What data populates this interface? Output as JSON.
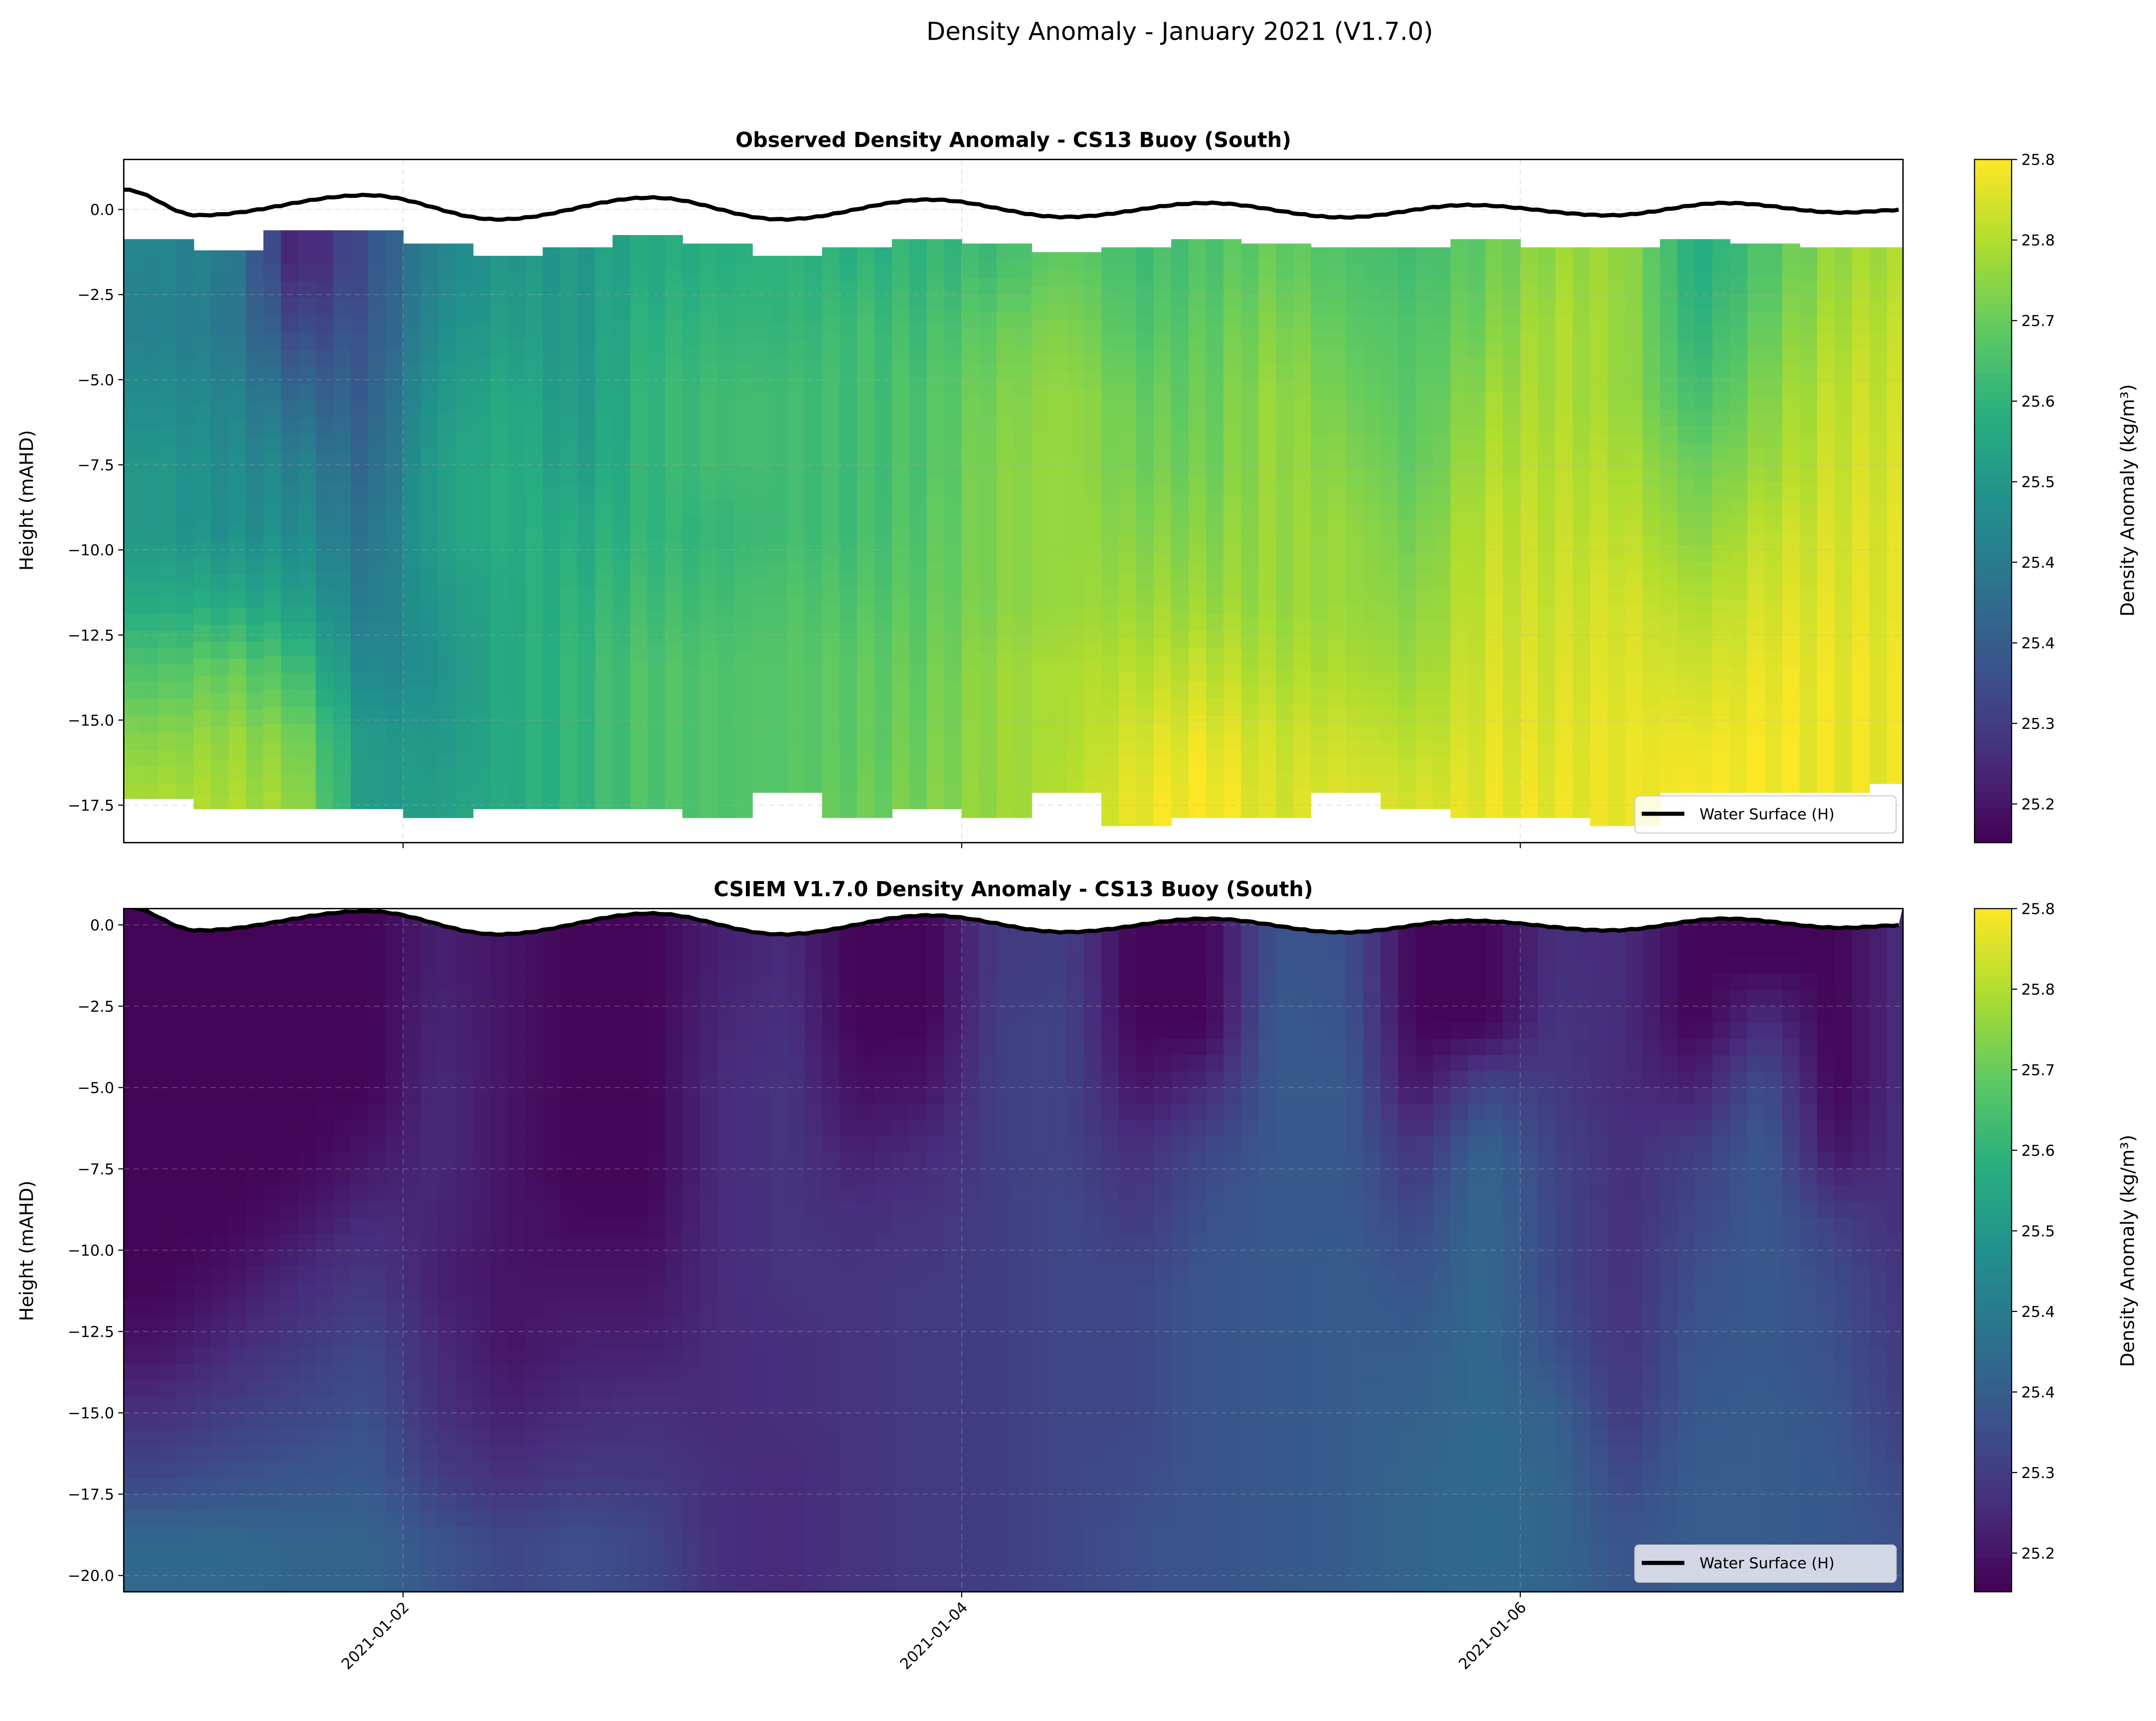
{
  "suptitle": "Density Anomaly - January 2021 (V1.7.0)",
  "colors": {
    "water_surface": "#000000",
    "grid": "#b0b0b0",
    "colormap": [
      "#440154",
      "#472d7b",
      "#3b528b",
      "#2c728e",
      "#21918c",
      "#28ae80",
      "#5ec962",
      "#addc30",
      "#fde725"
    ]
  },
  "xaxis": {
    "xlim": [
      "2021-01-01 00:00",
      "2021-01-07 08:53"
    ],
    "ticks": [
      "2021-01-02 00:00",
      "2021-01-04 00:00",
      "2021-01-06 00:00"
    ],
    "tick_labels": [
      "2021-01-02",
      "2021-01-04",
      "2021-01-06"
    ]
  },
  "water_surface": {
    "name": "Water Surface (H)",
    "points": [
      [
        "2021-01-01 00:00",
        0.58
      ],
      [
        "2021-01-01 06:20",
        -0.17
      ],
      [
        "2021-01-01 20:57",
        0.42
      ],
      [
        "2021-01-02 08:10",
        -0.29
      ],
      [
        "2021-01-02 21:20",
        0.35
      ],
      [
        "2021-01-03 08:32",
        -0.29
      ],
      [
        "2021-01-03 21:13",
        0.29
      ],
      [
        "2021-01-04 08:55",
        -0.22
      ],
      [
        "2021-01-04 21:06",
        0.19
      ],
      [
        "2021-01-05 08:48",
        -0.23
      ],
      [
        "2021-01-05 19:30",
        0.13
      ],
      [
        "2021-01-06 07:42",
        -0.17
      ],
      [
        "2021-01-06 17:38",
        0.19
      ],
      [
        "2021-01-07 03:42",
        -0.09
      ],
      [
        "2021-01-07 08:53",
        -0.01
      ]
    ]
  },
  "colorbar": {
    "label": "Density Anomaly (kg/m³)",
    "vmin": 25.164,
    "vmax": 25.8,
    "ticks": [
      25.2,
      25.275,
      25.35,
      25.425,
      25.5,
      25.575,
      25.65,
      25.725,
      25.8
    ],
    "tick_labels": [
      "25.2",
      "25.3",
      "25.4",
      "25.4",
      "25.5",
      "25.6",
      "25.7",
      "25.8",
      "25.8"
    ]
  },
  "chart_data": [
    {
      "type": "heatmap",
      "title": "Observed Density Anomaly - CS13 Buoy (South)",
      "xlabel": "",
      "ylabel": "Height (mAHD)",
      "ylim": [
        -18.6,
        1.47
      ],
      "yticks": [
        0,
        -2.5,
        -5,
        -7.5,
        -10,
        -12.5,
        -15,
        -17.5
      ],
      "ytick_labels": [
        "0.0",
        "−2.5",
        "−5.0",
        "−7.5",
        "−10.0",
        "−12.5",
        "−15.0",
        "−17.5"
      ],
      "grid": true,
      "legend": "lower right",
      "x": [
        "2021-01-01 03:00",
        "2021-01-01 09:00",
        "2021-01-01 15:00",
        "2021-01-01 21:00",
        "2021-01-02 03:00",
        "2021-01-02 09:00",
        "2021-01-02 15:00",
        "2021-01-02 21:00",
        "2021-01-03 03:00",
        "2021-01-03 09:00",
        "2021-01-03 15:00",
        "2021-01-03 21:00",
        "2021-01-04 03:00",
        "2021-01-04 09:00",
        "2021-01-04 15:00",
        "2021-01-04 21:00",
        "2021-01-05 03:00",
        "2021-01-05 09:00",
        "2021-01-05 15:00",
        "2021-01-05 21:00",
        "2021-01-06 03:00",
        "2021-01-06 09:00",
        "2021-01-06 15:00",
        "2021-01-06 21:00",
        "2021-01-07 03:00",
        "2021-01-07 09:00"
      ],
      "y": [
        -1.5,
        -3.5,
        -5.5,
        -7.5,
        -9.5,
        -11.5,
        -13.5,
        -15.5,
        -17.5
      ],
      "data_top": [
        -0.87,
        -1.2,
        -0.61,
        -0.61,
        -1.0,
        -1.36,
        -1.11,
        -0.75,
        -1.0,
        -1.36,
        -1.11,
        -0.87,
        -1.0,
        -1.25,
        -1.11,
        -0.87,
        -1.0,
        -1.11,
        -1.11,
        -0.87,
        -1.11,
        -1.11,
        -0.87,
        -1.0,
        -1.11,
        -1.11
      ],
      "data_bottom": [
        -17.3,
        -17.6,
        -17.6,
        -17.6,
        -17.86,
        -17.6,
        -17.6,
        -17.6,
        -17.86,
        -17.12,
        -17.86,
        -17.6,
        -17.86,
        -17.12,
        -18.1,
        -17.86,
        -17.86,
        -17.12,
        -17.6,
        -17.86,
        -17.86,
        -18.1,
        -17.12,
        -17.12,
        -17.12,
        -16.86
      ],
      "values": [
        [
          25.45,
          25.44,
          25.47,
          25.5,
          25.5,
          25.55,
          25.62,
          25.68,
          25.72
        ],
        [
          25.43,
          25.42,
          25.45,
          25.47,
          25.48,
          25.55,
          25.65,
          25.7,
          25.72
        ],
        [
          25.22,
          25.3,
          25.38,
          25.44,
          25.47,
          25.52,
          25.6,
          25.67,
          25.7
        ],
        [
          25.32,
          25.33,
          25.35,
          25.37,
          25.4,
          25.42,
          25.45,
          25.5,
          25.5
        ],
        [
          25.45,
          25.47,
          25.5,
          25.52,
          25.52,
          25.5,
          25.48,
          25.5,
          25.52
        ],
        [
          25.5,
          25.52,
          25.55,
          25.56,
          25.56,
          25.55,
          25.55,
          25.55,
          25.55
        ],
        [
          25.5,
          25.5,
          25.5,
          25.52,
          25.55,
          25.57,
          25.58,
          25.58,
          25.58
        ],
        [
          25.55,
          25.57,
          25.58,
          25.58,
          25.58,
          25.6,
          25.62,
          25.62,
          25.62
        ],
        [
          25.56,
          25.58,
          25.6,
          25.6,
          25.58,
          25.6,
          25.62,
          25.62,
          25.62
        ],
        [
          25.57,
          25.58,
          25.6,
          25.6,
          25.6,
          25.62,
          25.63,
          25.63,
          25.63
        ],
        [
          25.57,
          25.6,
          25.6,
          25.6,
          25.6,
          25.62,
          25.64,
          25.64,
          25.65
        ],
        [
          25.58,
          25.6,
          25.62,
          25.62,
          25.63,
          25.64,
          25.65,
          25.66,
          25.67
        ],
        [
          25.6,
          25.65,
          25.67,
          25.68,
          25.68,
          25.68,
          25.7,
          25.7,
          25.7
        ],
        [
          25.65,
          25.68,
          25.7,
          25.7,
          25.7,
          25.7,
          25.72,
          25.72,
          25.73
        ],
        [
          25.6,
          25.62,
          25.65,
          25.66,
          25.68,
          25.7,
          25.73,
          25.76,
          25.78
        ],
        [
          25.62,
          25.64,
          25.65,
          25.66,
          25.68,
          25.7,
          25.74,
          25.78,
          25.8
        ],
        [
          25.65,
          25.68,
          25.7,
          25.7,
          25.7,
          25.7,
          25.72,
          25.75,
          25.76
        ],
        [
          25.62,
          25.64,
          25.66,
          25.68,
          25.7,
          25.7,
          25.72,
          25.75,
          25.77
        ],
        [
          25.6,
          25.62,
          25.63,
          25.64,
          25.66,
          25.68,
          25.7,
          25.73,
          25.76
        ],
        [
          25.65,
          25.67,
          25.7,
          25.72,
          25.74,
          25.75,
          25.76,
          25.77,
          25.78
        ],
        [
          25.7,
          25.72,
          25.72,
          25.73,
          25.74,
          25.75,
          25.76,
          25.77,
          25.78
        ],
        [
          25.7,
          25.7,
          25.7,
          25.72,
          25.74,
          25.76,
          25.77,
          25.78,
          25.78
        ],
        [
          25.55,
          25.57,
          25.6,
          25.65,
          25.68,
          25.72,
          25.75,
          25.78,
          25.8
        ],
        [
          25.62,
          25.65,
          25.68,
          25.7,
          25.74,
          25.76,
          25.78,
          25.79,
          25.79
        ],
        [
          25.7,
          25.72,
          25.74,
          25.75,
          25.76,
          25.77,
          25.78,
          25.78,
          25.78
        ],
        [
          25.72,
          25.74,
          25.75,
          25.76,
          25.77,
          25.77,
          25.78,
          25.78,
          25.78
        ]
      ]
    },
    {
      "type": "heatmap",
      "title": "CSIEM V1.7.0 Density Anomaly - CS13 Buoy (South)",
      "xlabel": "",
      "ylabel": "Height (mAHD)",
      "ylim": [
        -20.5,
        0.5
      ],
      "yticks": [
        0,
        -2.5,
        -5,
        -7.5,
        -10,
        -12.5,
        -15,
        -17.5,
        -20
      ],
      "ytick_labels": [
        "0.0",
        "−2.5",
        "−5.0",
        "−7.5",
        "−10.0",
        "−12.5",
        "−15.0",
        "−17.5",
        "−20.0"
      ],
      "grid": true,
      "legend": "lower right",
      "x": [
        "2021-01-01 03:00",
        "2021-01-01 09:00",
        "2021-01-01 15:00",
        "2021-01-01 21:00",
        "2021-01-02 03:00",
        "2021-01-02 09:00",
        "2021-01-02 15:00",
        "2021-01-02 21:00",
        "2021-01-03 03:00",
        "2021-01-03 09:00",
        "2021-01-03 15:00",
        "2021-01-03 21:00",
        "2021-01-04 03:00",
        "2021-01-04 09:00",
        "2021-01-04 15:00",
        "2021-01-04 21:00",
        "2021-01-05 03:00",
        "2021-01-05 09:00",
        "2021-01-05 15:00",
        "2021-01-05 21:00",
        "2021-01-06 03:00",
        "2021-01-06 09:00",
        "2021-01-06 15:00",
        "2021-01-06 21:00",
        "2021-01-07 03:00",
        "2021-01-07 09:00"
      ],
      "y": [
        -1,
        -3,
        -5,
        -7,
        -9,
        -11,
        -13,
        -15,
        -17,
        -19
      ],
      "values": [
        [
          25.17,
          25.17,
          25.17,
          25.17,
          25.17,
          25.17,
          25.2,
          25.25,
          25.3,
          25.38
        ],
        [
          25.17,
          25.17,
          25.17,
          25.17,
          25.17,
          25.2,
          25.24,
          25.28,
          25.32,
          25.38
        ],
        [
          25.17,
          25.17,
          25.17,
          25.17,
          25.2,
          25.24,
          25.27,
          25.3,
          25.33,
          25.37
        ],
        [
          25.17,
          25.17,
          25.17,
          25.2,
          25.24,
          25.27,
          25.3,
          25.32,
          25.34,
          25.37
        ],
        [
          25.22,
          25.23,
          25.24,
          25.24,
          25.23,
          25.22,
          25.24,
          25.25,
          25.28,
          25.33
        ],
        [
          25.2,
          25.2,
          25.2,
          25.2,
          25.2,
          25.2,
          25.2,
          25.22,
          25.25,
          25.3
        ],
        [
          25.17,
          25.17,
          25.17,
          25.17,
          25.18,
          25.2,
          25.22,
          25.24,
          25.27,
          25.32
        ],
        [
          25.17,
          25.17,
          25.17,
          25.17,
          25.18,
          25.2,
          25.22,
          25.25,
          25.27,
          25.3
        ],
        [
          25.22,
          25.23,
          25.24,
          25.24,
          25.24,
          25.24,
          25.24,
          25.24,
          25.25,
          25.25
        ],
        [
          25.24,
          25.25,
          25.26,
          25.26,
          25.26,
          25.26,
          25.25,
          25.25,
          25.24,
          25.24
        ],
        [
          25.17,
          25.17,
          25.19,
          25.22,
          25.25,
          25.26,
          25.26,
          25.26,
          25.26,
          25.26
        ],
        [
          25.17,
          25.17,
          25.2,
          25.24,
          25.26,
          25.27,
          25.27,
          25.27,
          25.27,
          25.27
        ],
        [
          25.27,
          25.28,
          25.28,
          25.28,
          25.28,
          25.28,
          25.28,
          25.28,
          25.28,
          25.28
        ],
        [
          25.28,
          25.29,
          25.29,
          25.29,
          25.3,
          25.3,
          25.3,
          25.3,
          25.3,
          25.3
        ],
        [
          25.17,
          25.17,
          25.2,
          25.25,
          25.27,
          25.3,
          25.3,
          25.3,
          25.31,
          25.32
        ],
        [
          25.17,
          25.17,
          25.24,
          25.3,
          25.32,
          25.33,
          25.33,
          25.33,
          25.33,
          25.33
        ],
        [
          25.33,
          25.34,
          25.34,
          25.34,
          25.34,
          25.34,
          25.34,
          25.34,
          25.34,
          25.34
        ],
        [
          25.32,
          25.33,
          25.34,
          25.34,
          25.34,
          25.35,
          25.35,
          25.35,
          25.35,
          25.35
        ],
        [
          25.17,
          25.17,
          25.2,
          25.26,
          25.3,
          25.33,
          25.35,
          25.36,
          25.37,
          25.37
        ],
        [
          25.17,
          25.17,
          25.3,
          25.37,
          25.38,
          25.38,
          25.38,
          25.38,
          25.38,
          25.38
        ],
        [
          25.25,
          25.26,
          25.27,
          25.29,
          25.3,
          25.3,
          25.32,
          25.36,
          25.37,
          25.37
        ],
        [
          25.24,
          25.24,
          25.24,
          25.25,
          25.25,
          25.25,
          25.26,
          25.27,
          25.3,
          25.33
        ],
        [
          25.17,
          25.17,
          25.22,
          25.28,
          25.3,
          25.32,
          25.33,
          25.34,
          25.35,
          25.35
        ],
        [
          25.17,
          25.25,
          25.32,
          25.34,
          25.34,
          25.34,
          25.34,
          25.35,
          25.35,
          25.35
        ],
        [
          25.17,
          25.17,
          25.17,
          25.2,
          25.28,
          25.31,
          25.32,
          25.33,
          25.34,
          25.34
        ],
        [
          25.25,
          25.25,
          25.25,
          25.25,
          25.25,
          25.26,
          25.27,
          25.28,
          25.3,
          25.32
        ]
      ]
    }
  ]
}
